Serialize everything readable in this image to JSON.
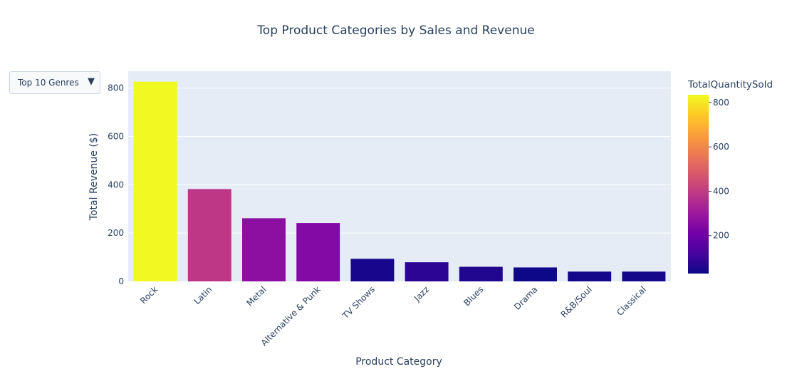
{
  "dropdown": {
    "selected": "Top 10 Genres",
    "arrow_icon": "triangle-down-icon"
  },
  "chart_data": {
    "type": "bar",
    "title": "Top Product Categories by Sales and Revenue",
    "xlabel": "Product Category",
    "ylabel": "Total Revenue ($)",
    "categories": [
      "Rock",
      "Latin",
      "Metal",
      "Alternative & Punk",
      "TV Shows",
      "Jazz",
      "Blues",
      "Drama",
      "R&B/Soul",
      "Classical"
    ],
    "values": [
      826.65,
      382.14,
      261.36,
      241.56,
      93.53,
      79.2,
      60.39,
      57.71,
      40.59,
      40.59
    ],
    "quantity_sold": [
      835,
      386,
      264,
      244,
      47,
      80,
      61,
      29,
      41,
      41
    ],
    "ylim": [
      0,
      870
    ],
    "yticks": [
      0,
      200,
      400,
      600,
      800
    ],
    "grid": true,
    "colorbar": {
      "title": "TotalQuantitySold",
      "range": [
        29,
        835
      ],
      "ticks": [
        200,
        400,
        600,
        800
      ],
      "colorscale": [
        "#0d0887",
        "#46039f",
        "#7201a8",
        "#9c179e",
        "#bd3786",
        "#d8576b",
        "#ed7953",
        "#fb9f3a",
        "#fdca26",
        "#f0f921"
      ]
    }
  }
}
